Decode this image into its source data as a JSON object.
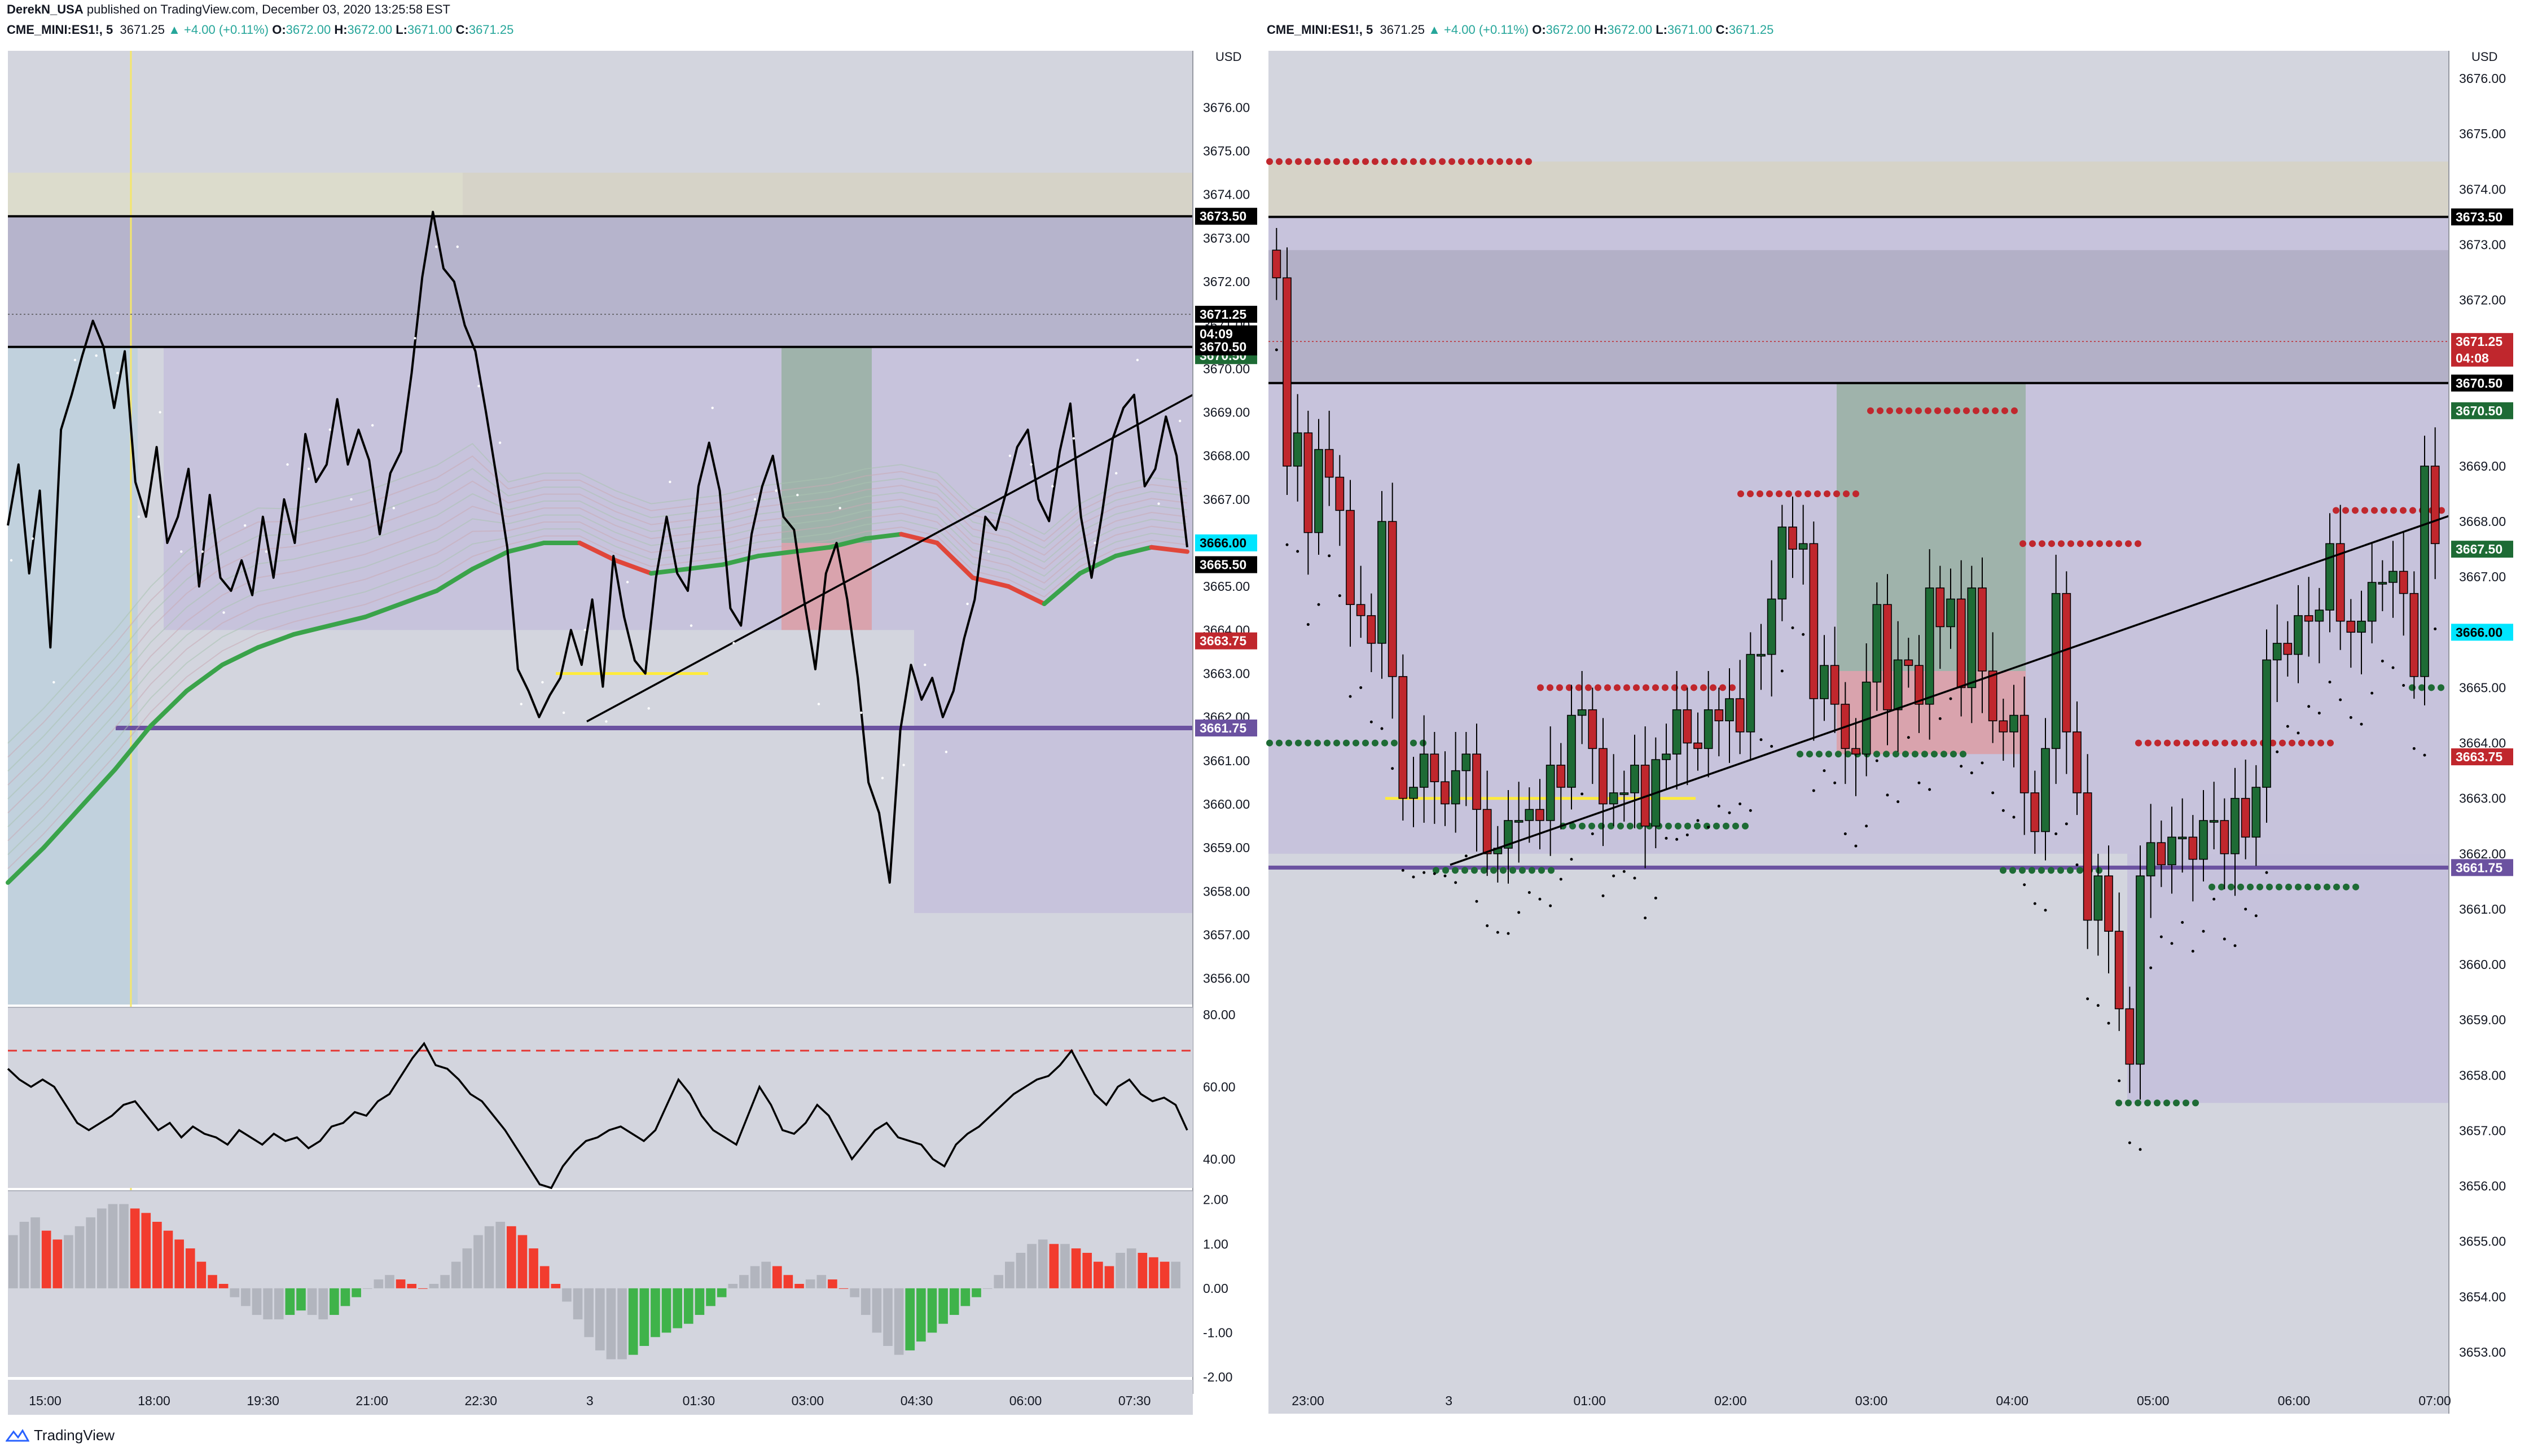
{
  "header": {
    "author": "DerekN_USA",
    "published_text": "published on TradingView.com, December 03, 2020 13:25:58 EST"
  },
  "legends": {
    "left": {
      "symbol": "CME_MINI:ES1!, 5",
      "last": "3671.25",
      "change": "▲ +4.00 (+0.11%)",
      "o_label": "O:",
      "o": "3672.00",
      "h_label": "H:",
      "h": "3672.00",
      "l_label": "L:",
      "l": "3671.00",
      "c_label": "C:",
      "c": "3671.25"
    },
    "right": {
      "symbol": "CME_MINI:ES1!, 5",
      "last": "3671.25",
      "change": "▲ +4.00 (+0.11%)",
      "o_label": "O:",
      "o": "3672.00",
      "h_label": "H:",
      "h": "3672.00",
      "l_label": "L:",
      "l": "3671.00",
      "c_label": "C:",
      "c": "3671.25"
    }
  },
  "footer": {
    "brand": "TradingView"
  },
  "colors": {
    "panel_bg": "#d3d5de",
    "zone_purple": "#c4c0dc",
    "zone_beige": "#d6d3c8",
    "green_zone": "#9fb3ab",
    "red_zone": "#d9a3ad",
    "bull": "#1e6b35",
    "bear": "#c0272d",
    "ema_green": "#3aa34a",
    "ema_red": "#e0463a",
    "tag_black": "#000000",
    "tag_green": "#1e6b35",
    "tag_red": "#c0272d",
    "tag_cyan": "#00e5ff",
    "tag_purple": "#6b52a0",
    "level_purple": "#6b52a0",
    "yellow": "#ffeb3b"
  },
  "chart_data": [
    {
      "id": "left-price",
      "type": "line",
      "title": "CME_MINI:ES1!, 5",
      "axis_unit": "USD",
      "y_range": [
        3655.4,
        3677.3
      ],
      "y_ticks": [
        "3676.00",
        "3675.00",
        "3674.00",
        "3673.00",
        "3672.00",
        "3671.00",
        "3670.00",
        "3669.00",
        "3668.00",
        "3667.00",
        "3666.00",
        "3665.00",
        "3664.00",
        "3663.00",
        "3662.00",
        "3661.00",
        "3660.00",
        "3659.00",
        "3658.00",
        "3657.00",
        "3656.00"
      ],
      "x_ticks": [
        "15:00",
        "18:00",
        "19:30",
        "21:00",
        "22:30",
        "3",
        "01:30",
        "03:00",
        "04:30",
        "06:00",
        "07:30"
      ],
      "close_series": [
        3666.4,
        3667.8,
        3665.3,
        3667.2,
        3663.6,
        3668.6,
        3669.4,
        3670.3,
        3671.1,
        3670.5,
        3669.1,
        3670.4,
        3667.4,
        3666.6,
        3668.2,
        3666.0,
        3666.6,
        3667.7,
        3665.0,
        3667.1,
        3665.2,
        3664.9,
        3665.6,
        3664.8,
        3666.6,
        3665.2,
        3667.0,
        3666.0,
        3668.5,
        3667.4,
        3667.8,
        3669.3,
        3667.8,
        3668.6,
        3667.9,
        3666.2,
        3667.6,
        3668.1,
        3669.9,
        3672.1,
        3673.6,
        3672.3,
        3672.0,
        3671.0,
        3670.4,
        3669.0,
        3667.5,
        3665.9,
        3663.1,
        3662.6,
        3662.0,
        3662.5,
        3662.9,
        3664.0,
        3663.2,
        3664.7,
        3662.7,
        3665.7,
        3664.3,
        3663.3,
        3663.0,
        3665.2,
        3666.6,
        3665.3,
        3664.9,
        3667.3,
        3668.3,
        3667.2,
        3664.5,
        3664.1,
        3666.2,
        3667.3,
        3668.0,
        3666.6,
        3666.3,
        3664.6,
        3663.1,
        3665.3,
        3666.0,
        3664.7,
        3662.9,
        3660.5,
        3659.8,
        3658.2,
        3661.7,
        3663.2,
        3662.4,
        3662.9,
        3662.0,
        3662.6,
        3663.8,
        3664.7,
        3666.6,
        3666.3,
        3667.2,
        3668.2,
        3668.6,
        3667.0,
        3666.5,
        3668.1,
        3669.2,
        3666.6,
        3665.2,
        3666.7,
        3668.4,
        3669.1,
        3669.4,
        3667.3,
        3667.7,
        3668.9,
        3668.0,
        3665.9
      ],
      "ema_series": [
        3658.2,
        3659.0,
        3659.9,
        3660.8,
        3661.8,
        3662.6,
        3663.2,
        3663.6,
        3663.9,
        3664.1,
        3664.3,
        3664.6,
        3664.9,
        3665.4,
        3665.8,
        3666.0,
        3666.0,
        3665.6,
        3665.3,
        3665.4,
        3665.5,
        3665.7,
        3665.8,
        3665.9,
        3666.1,
        3666.2,
        3666.0,
        3665.2,
        3665.0,
        3664.6,
        3665.3,
        3665.7,
        3665.9,
        3665.8
      ],
      "ema_note_colors": "green while rising, red while falling",
      "levels": [
        {
          "price": 3673.5,
          "label": "3673.50",
          "tag": "black"
        },
        {
          "price": 3670.5,
          "label": "3670.50",
          "tag": "black"
        },
        {
          "price": 3661.75,
          "label": "3661.75",
          "tag": "purple"
        }
      ],
      "price_tags": [
        {
          "label": "3671.25",
          "price": 3671.25,
          "color": "#000000"
        },
        {
          "label": "04:09",
          "price": 3670.8,
          "color": "#000000"
        },
        {
          "label": "3670.50",
          "price": 3670.3,
          "color": "#1e6b35"
        },
        {
          "label": "3666.00",
          "price": 3666.0,
          "color": "#00e5ff",
          "text_color": "#000000"
        },
        {
          "label": "3665.50",
          "price": 3665.5,
          "color": "#000000"
        },
        {
          "label": "3663.75",
          "price": 3663.75,
          "color": "#c0272d"
        }
      ],
      "trendline": {
        "from": [
          3661.9,
          "start"
        ],
        "to": [
          3669.4,
          "end"
        ]
      }
    },
    {
      "id": "left-rsi",
      "type": "line",
      "y_ticks": [
        "80.00",
        "60.00",
        "40.00"
      ],
      "y_range": [
        32,
        82
      ],
      "upper_band": 70,
      "lower_band": 30,
      "values": [
        65,
        62,
        60,
        62,
        60,
        55,
        50,
        48,
        50,
        52,
        55,
        56,
        52,
        48,
        50,
        46,
        49,
        47,
        46,
        44,
        48,
        46,
        44,
        47,
        45,
        46,
        43,
        45,
        49,
        50,
        53,
        52,
        56,
        58,
        63,
        68,
        72,
        66,
        65,
        62,
        58,
        56,
        52,
        48,
        43,
        38,
        33,
        32,
        38,
        42,
        45,
        46,
        48,
        49,
        47,
        45,
        48,
        55,
        62,
        58,
        52,
        48,
        46,
        44,
        52,
        60,
        55,
        48,
        47,
        50,
        55,
        52,
        46,
        40,
        44,
        48,
        50,
        46,
        45,
        44,
        40,
        38,
        44,
        47,
        49,
        52,
        55,
        58,
        60,
        62,
        63,
        66,
        70,
        64,
        58,
        55,
        60,
        62,
        58,
        56,
        57,
        55,
        48
      ]
    },
    {
      "id": "left-macd",
      "type": "bar",
      "y_ticks": [
        "2.00",
        "1.00",
        "0.00",
        "-1.00",
        "-2.00"
      ],
      "y_range": [
        -2.0,
        2.2
      ],
      "values": [
        1.2,
        1.5,
        1.6,
        1.3,
        1.1,
        1.2,
        1.4,
        1.6,
        1.8,
        1.9,
        1.9,
        1.8,
        1.7,
        1.5,
        1.3,
        1.1,
        0.9,
        0.6,
        0.3,
        0.1,
        -0.2,
        -0.4,
        -0.6,
        -0.7,
        -0.7,
        -0.6,
        -0.5,
        -0.6,
        -0.7,
        -0.6,
        -0.4,
        -0.2,
        0.0,
        0.2,
        0.3,
        0.2,
        0.1,
        0.0,
        0.1,
        0.3,
        0.6,
        0.9,
        1.2,
        1.4,
        1.5,
        1.4,
        1.2,
        0.9,
        0.5,
        0.1,
        -0.3,
        -0.7,
        -1.1,
        -1.4,
        -1.6,
        -1.6,
        -1.5,
        -1.3,
        -1.1,
        -1.0,
        -0.9,
        -0.8,
        -0.6,
        -0.4,
        -0.2,
        0.1,
        0.3,
        0.5,
        0.6,
        0.5,
        0.3,
        0.1,
        0.2,
        0.3,
        0.2,
        0.0,
        -0.2,
        -0.6,
        -1.0,
        -1.3,
        -1.5,
        -1.4,
        -1.2,
        -1.0,
        -0.8,
        -0.6,
        -0.4,
        -0.2,
        0.0,
        0.3,
        0.6,
        0.8,
        1.0,
        1.1,
        1.0,
        1.0,
        0.9,
        0.8,
        0.6,
        0.5,
        0.8,
        0.9,
        0.8,
        0.7,
        0.6,
        0.6
      ]
    },
    {
      "id": "right-candles",
      "type": "candlestick",
      "title": "CME_MINI:ES1!, 5",
      "axis_unit": "USD",
      "y_range": [
        3652.5,
        3676.5
      ],
      "y_ticks": [
        "3676.00",
        "3675.00",
        "3674.00",
        "3673.00",
        "3672.00",
        "3671.00",
        "3670.00",
        "3669.00",
        "3668.00",
        "3667.00",
        "3666.00",
        "3665.00",
        "3664.00",
        "3663.00",
        "3662.00",
        "3661.00",
        "3660.00",
        "3659.00",
        "3658.00",
        "3657.00",
        "3656.00",
        "3655.00",
        "3654.00",
        "3653.00"
      ],
      "x_ticks": [
        "23:00",
        "3",
        "01:00",
        "02:00",
        "03:00",
        "04:00",
        "05:00",
        "06:00",
        "07:00"
      ],
      "candles_close": [
        3672.4,
        3669.0,
        3669.6,
        3667.8,
        3669.3,
        3668.8,
        3668.2,
        3666.5,
        3666.3,
        3665.8,
        3668.0,
        3665.2,
        3663.0,
        3663.2,
        3663.8,
        3663.3,
        3662.9,
        3663.5,
        3663.8,
        3662.8,
        3662.0,
        3662.1,
        3662.6,
        3662.6,
        3662.8,
        3662.6,
        3663.6,
        3663.2,
        3664.5,
        3664.6,
        3663.9,
        3662.9,
        3663.1,
        3663.1,
        3663.6,
        3662.5,
        3663.7,
        3663.8,
        3664.6,
        3664.0,
        3663.9,
        3664.6,
        3664.4,
        3664.8,
        3664.2,
        3665.6,
        3665.6,
        3666.6,
        3667.9,
        3667.5,
        3667.6,
        3664.8,
        3665.4,
        3664.7,
        3663.9,
        3663.8,
        3665.1,
        3666.5,
        3664.6,
        3665.5,
        3665.4,
        3664.7,
        3666.8,
        3666.1,
        3666.6,
        3665.0,
        3666.8,
        3665.3,
        3664.4,
        3664.2,
        3664.5,
        3663.1,
        3662.4,
        3663.9,
        3666.7,
        3664.2,
        3663.1,
        3660.8,
        3661.6,
        3660.6,
        3659.2,
        3658.2,
        3661.6,
        3662.2,
        3661.8,
        3662.3,
        3662.3,
        3661.9,
        3662.6,
        3662.6,
        3662.0,
        3663.0,
        3662.3,
        3663.2,
        3665.5,
        3665.8,
        3665.6,
        3666.3,
        3666.2,
        3666.4,
        3667.6,
        3666.2,
        3666.0,
        3666.2,
        3666.9,
        3666.9,
        3667.1,
        3666.7,
        3665.2,
        3669.0,
        3667.6
      ],
      "levels": [
        {
          "price": 3673.5,
          "label": "3673.50",
          "tag": "black"
        },
        {
          "price": 3670.5,
          "label": "3670.50",
          "tag": "black"
        },
        {
          "price": 3661.75,
          "label": "3661.75",
          "tag": "purple"
        }
      ],
      "price_tags": [
        {
          "label": "3673.50",
          "price": 3673.5,
          "color": "#000000"
        },
        {
          "label": "3671.25",
          "price": 3671.25,
          "color": "#c0272d"
        },
        {
          "label": "04:08",
          "price": 3670.95,
          "color": "#c0272d"
        },
        {
          "label": "3670.50",
          "price": 3670.5,
          "color": "#000000"
        },
        {
          "label": "3670.50",
          "price": 3670.0,
          "color": "#1e6b35"
        },
        {
          "label": "3667.50",
          "price": 3667.5,
          "color": "#1e6b35"
        },
        {
          "label": "3666.00",
          "price": 3666.0,
          "color": "#00e5ff",
          "text_color": "#000000"
        },
        {
          "label": "3663.75",
          "price": 3663.75,
          "color": "#c0272d"
        },
        {
          "label": "3661.75",
          "price": 3661.75,
          "color": "#6b52a0"
        }
      ],
      "trendline": {
        "from": [
          3661.8,
          "start"
        ],
        "to": [
          3668.1,
          "end"
        ]
      }
    }
  ]
}
